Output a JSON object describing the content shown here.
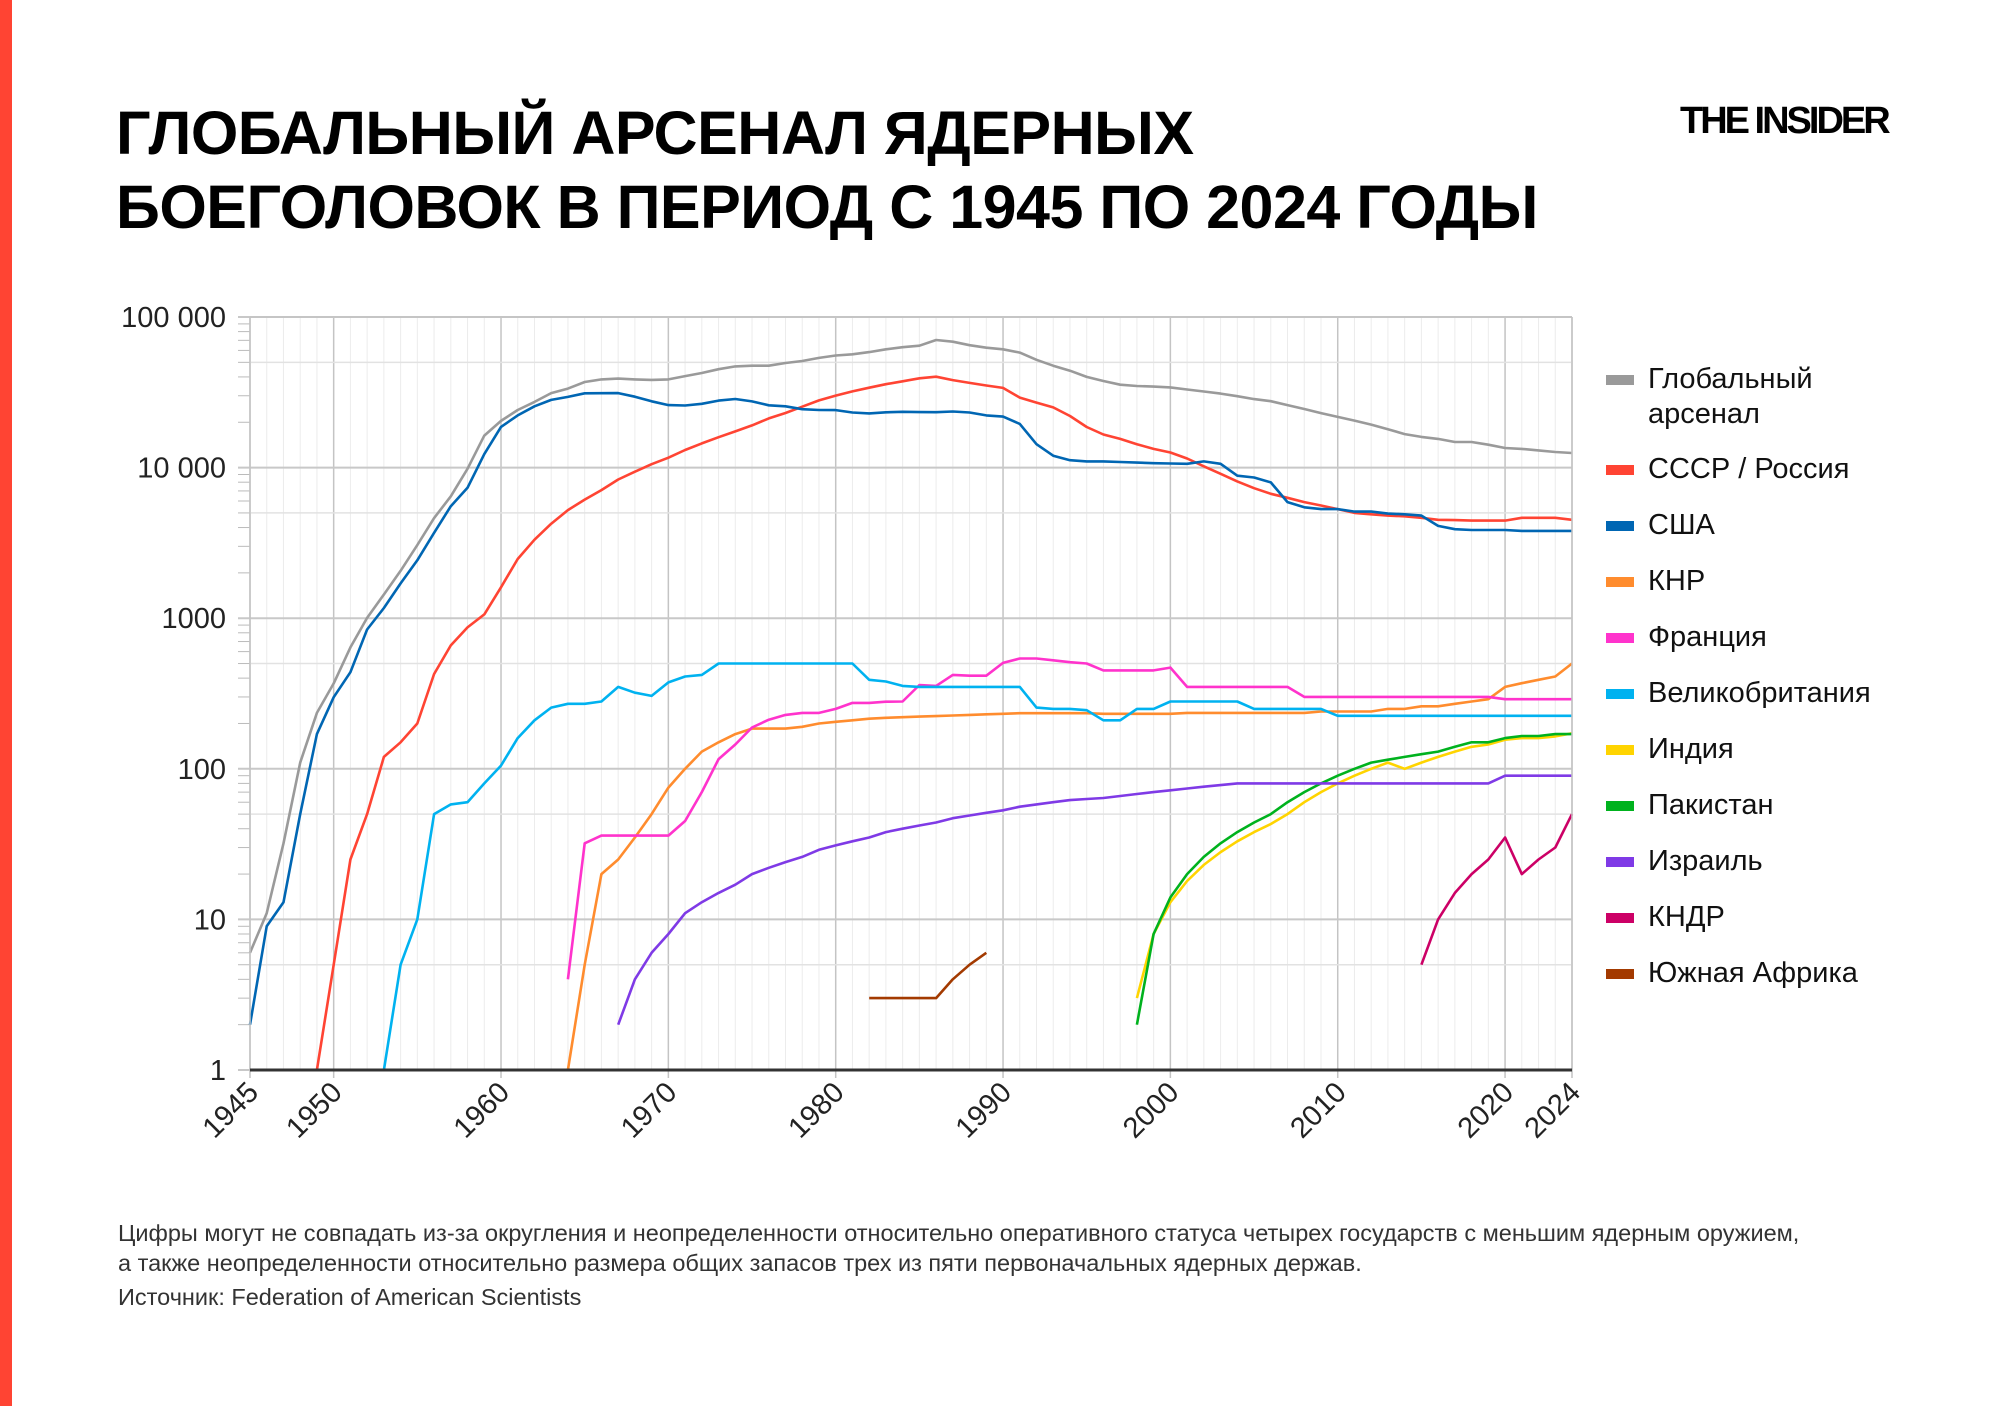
{
  "header": {
    "title_lines": [
      "ГЛОБАЛЬНЫЙ АРСЕНАЛ ЯДЕРНЫХ",
      "БОЕГОЛОВОК В ПЕРИОД С 1945 ПО 2024 ГОДЫ"
    ],
    "logo": "THE INSIDER",
    "accent_color": "#ff4433"
  },
  "footer": {
    "note": "Цифры могут не совпадать из-за округления и неопределенности относительно оперативного статуса четырех государств с меньшим ядерным оружием, а также неопределенности относительно размера общих запасов трех из пяти первоначальных ядерных держав.",
    "source": "Источник: Federation of American Scientists"
  },
  "chart_data": {
    "type": "line",
    "title": "",
    "xlabel": "",
    "ylabel": "",
    "x_range": [
      1945,
      2024
    ],
    "y_range": [
      1,
      100000
    ],
    "y_scale": "log",
    "grid": true,
    "legend_position": "right",
    "x_ticks": [
      1945,
      1950,
      1960,
      1970,
      1980,
      1990,
      2000,
      2010,
      2020,
      2024
    ],
    "x_tick_labels": [
      "1945",
      "1950",
      "1960",
      "1970",
      "1980",
      "1990",
      "2000",
      "2010",
      "2020",
      "2024"
    ],
    "y_ticks": [
      1,
      10,
      100,
      1000,
      10000,
      100000
    ],
    "y_tick_labels": [
      "1",
      "10",
      "100",
      "1000",
      "10 000",
      "100 000"
    ],
    "series": [
      {
        "name": "Глобальный арсенал",
        "name_lines": [
          "Глобальный",
          "арсенал"
        ],
        "color": "#9a9a9a",
        "x_start": 1945,
        "values": [
          6,
          11,
          32,
          110,
          235,
          369,
          640,
          1005,
          1436,
          2063,
          3057,
          4618,
          6444,
          9822,
          16305,
          20434,
          24111,
          27297,
          31255,
          33447,
          37000,
          38500,
          39000,
          38500,
          38200,
          38500,
          40500,
          42500,
          45000,
          47000,
          47500,
          47500,
          49500,
          51000,
          53500,
          55500,
          56500,
          58500,
          61000,
          63000,
          64500,
          70300,
          68500,
          65000,
          62500,
          61000,
          58000,
          52000,
          47500,
          44000,
          40000,
          37600,
          35500,
          34800,
          34500,
          34100,
          33000,
          32000,
          31000,
          29800,
          28500,
          27600,
          26000,
          24500,
          23000,
          21700,
          20500,
          19300,
          18000,
          16700,
          16000,
          15500,
          14800,
          14800,
          14200,
          13500,
          13300,
          13000,
          12700,
          12500
        ]
      },
      {
        "name": "СССР / Россия",
        "color": "#ff4433",
        "x_start": 1949,
        "values": [
          1,
          5,
          25,
          50,
          120,
          150,
          200,
          426,
          660,
          869,
          1060,
          1605,
          2471,
          3322,
          4238,
          5221,
          6129,
          7089,
          8339,
          9399,
          10538,
          11643,
          13092,
          14478,
          15915,
          17385,
          19055,
          21205,
          23044,
          25393,
          27935,
          30062,
          32049,
          33952,
          35804,
          37431,
          39197,
          40159,
          38107,
          36538,
          35078,
          33800,
          29154,
          27000,
          25100,
          22000,
          18600,
          16600,
          15500,
          14300,
          13300,
          12600,
          11500,
          10200,
          9100,
          8100,
          7300,
          6700,
          6300,
          5900,
          5600,
          5300,
          5000,
          4900,
          4800,
          4750,
          4640,
          4500,
          4480,
          4450,
          4450,
          4450,
          4640,
          4640,
          4640,
          4500
        ]
      },
      {
        "name": "США",
        "color": "#0066b3",
        "x_start": 1945,
        "values": [
          2,
          9,
          13,
          50,
          170,
          299,
          438,
          841,
          1169,
          1703,
          2422,
          3692,
          5543,
          7345,
          12298,
          18638,
          22229,
          25540,
          28133,
          29463,
          31139,
          31175,
          31255,
          29561,
          27552,
          26008,
          25830,
          26516,
          27835,
          28537,
          27519,
          25914,
          25542,
          24418,
          24138,
          24104,
          23208,
          22886,
          23305,
          23459,
          23368,
          23317,
          23575,
          23205,
          22217,
          21800,
          19500,
          14300,
          12000,
          11200,
          11000,
          11000,
          10900,
          10800,
          10700,
          10650,
          10600,
          11000,
          10600,
          8830,
          8600,
          7970,
          5900,
          5450,
          5300,
          5300,
          5100,
          5100,
          4950,
          4900,
          4800,
          4100,
          3900,
          3850,
          3850,
          3850,
          3800,
          3800,
          3800,
          3800
        ]
      },
      {
        "name": "КНР",
        "color": "#ff8c2e",
        "x_start": 1964,
        "values": [
          1,
          5,
          20,
          25,
          35,
          50,
          75,
          100,
          130,
          150,
          170,
          185,
          185,
          185,
          190,
          200,
          205,
          210,
          215,
          218,
          220,
          222,
          224,
          226,
          228,
          230,
          232,
          234,
          234,
          234,
          234,
          234,
          232,
          232,
          232,
          232,
          232,
          235,
          235,
          235,
          235,
          235,
          235,
          235,
          235,
          240,
          240,
          240,
          240,
          250,
          250,
          260,
          260,
          270,
          280,
          290,
          350,
          370,
          390,
          410,
          500
        ]
      },
      {
        "name": "Франция",
        "color": "#ff33cc",
        "x_start": 1964,
        "values": [
          4,
          32,
          36,
          36,
          36,
          36,
          36,
          45,
          70,
          116,
          145,
          188,
          212,
          228,
          235,
          235,
          250,
          274,
          274,
          279,
          280,
          360,
          355,
          420,
          415,
          415,
          505,
          540,
          540,
          525,
          510,
          500,
          450,
          450,
          450,
          450,
          470,
          350,
          350,
          350,
          350,
          350,
          350,
          350,
          300,
          300,
          300,
          300,
          300,
          300,
          300,
          300,
          300,
          300,
          300,
          300,
          290,
          290,
          290,
          290,
          290
        ]
      },
      {
        "name": "Великобритания",
        "color": "#00b2f0",
        "x_start": 1953,
        "values": [
          1,
          5,
          10,
          50,
          58,
          60,
          80,
          105,
          160,
          210,
          255,
          270,
          270,
          280,
          350,
          320,
          305,
          375,
          410,
          420,
          500,
          500,
          500,
          500,
          500,
          500,
          500,
          500,
          500,
          390,
          380,
          355,
          350,
          350,
          350,
          350,
          350,
          350,
          350,
          255,
          250,
          250,
          245,
          210,
          210,
          250,
          250,
          280,
          280,
          280,
          280,
          280,
          250,
          250,
          250,
          250,
          250,
          225,
          225,
          225,
          225,
          225,
          225,
          225,
          225,
          225,
          225,
          225,
          225,
          225,
          225,
          225
        ]
      },
      {
        "name": "Индия",
        "color": "#ffd400",
        "x_start": 1998,
        "values": [
          3,
          8,
          13,
          18,
          23,
          28,
          33,
          38,
          43,
          50,
          60,
          70,
          80,
          90,
          100,
          110,
          100,
          110,
          120,
          130,
          140,
          145,
          156,
          160,
          160,
          164,
          172
        ]
      },
      {
        "name": "Пакистан",
        "color": "#00b21e",
        "x_start": 1998,
        "values": [
          2,
          8,
          14,
          20,
          26,
          32,
          38,
          44,
          50,
          60,
          70,
          80,
          90,
          100,
          110,
          115,
          120,
          125,
          130,
          140,
          150,
          150,
          160,
          165,
          165,
          170,
          170
        ]
      },
      {
        "name": "Израиль",
        "color": "#7f3ae6",
        "x_start": 1967,
        "values": [
          2,
          4,
          6,
          8,
          11,
          13,
          15,
          17,
          20,
          22,
          24,
          26,
          29,
          31,
          33,
          35,
          38,
          40,
          42,
          44,
          47,
          49,
          51,
          53,
          56,
          58,
          60,
          62,
          63,
          64,
          66,
          68,
          70,
          72,
          74,
          76,
          78,
          80,
          80,
          80,
          80,
          80,
          80,
          80,
          80,
          80,
          80,
          80,
          80,
          80,
          80,
          80,
          80,
          90,
          90,
          90,
          90,
          90
        ]
      },
      {
        "name": "КНДР",
        "color": "#cc0066",
        "x_start": 2015,
        "values": [
          5,
          10,
          15,
          20,
          25,
          35,
          20,
          25,
          30,
          50
        ]
      },
      {
        "name": "Южная Африка",
        "color": "#a33a00",
        "x_start": 1982,
        "values": [
          3,
          3,
          3,
          3,
          3,
          4,
          5,
          6
        ]
      }
    ]
  }
}
